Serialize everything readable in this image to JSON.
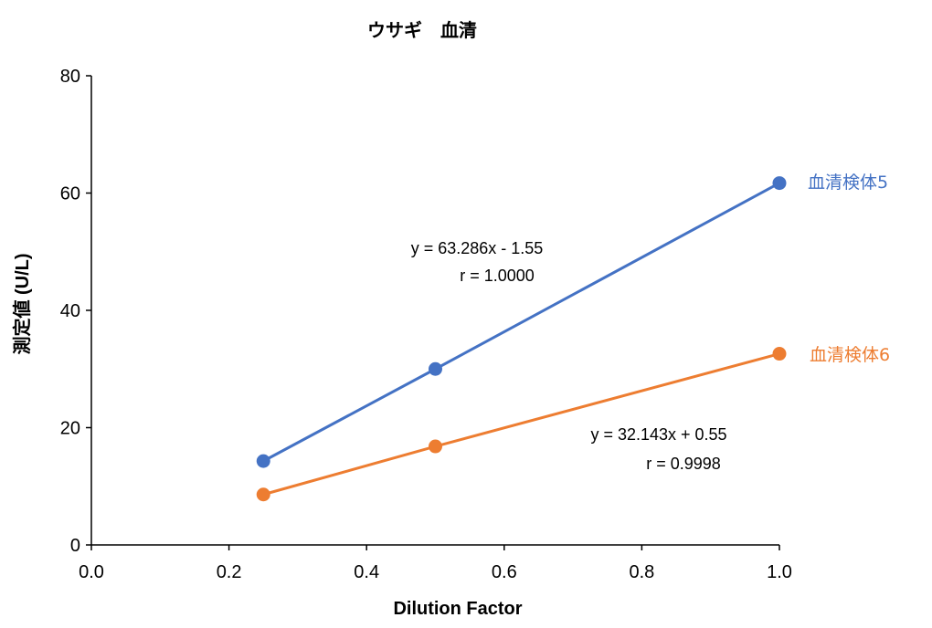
{
  "chart_data": {
    "type": "line",
    "title": "ウサギ　血清",
    "xlabel": "Dilution Factor",
    "ylabel": "測定値 (U/L)",
    "xlim": [
      0.0,
      1.0
    ],
    "ylim": [
      0,
      80
    ],
    "xticks": [
      "0.0",
      "0.2",
      "0.4",
      "0.6",
      "0.8",
      "1.0"
    ],
    "yticks": [
      "0",
      "20",
      "40",
      "60",
      "80"
    ],
    "grid": false,
    "legend_position": "inline-right",
    "series": [
      {
        "name": "血清検体5",
        "color": "#4472C4",
        "x": [
          0.25,
          0.5,
          1.0
        ],
        "y": [
          14.3,
          30.0,
          61.7
        ],
        "equation": "y = 63.286x - 1.55",
        "r": "r = 1.0000"
      },
      {
        "name": "血清検体6",
        "color": "#ED7D31",
        "x": [
          0.25,
          0.5,
          1.0
        ],
        "y": [
          8.6,
          16.8,
          32.6
        ],
        "equation": "y = 32.143x + 0.55",
        "r": "r = 0.9998"
      }
    ]
  }
}
